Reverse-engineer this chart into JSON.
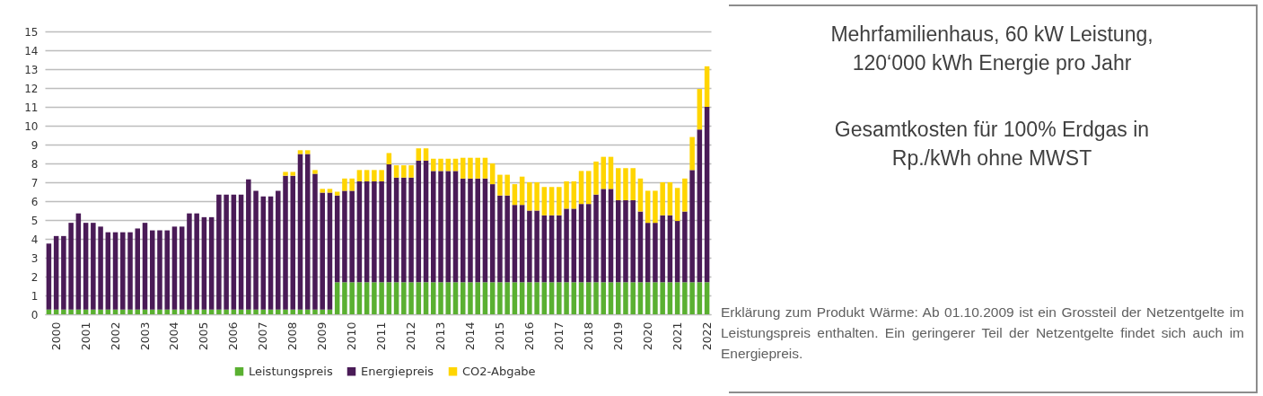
{
  "chart_data": {
    "type": "bar",
    "stacked": true,
    "title": "Mehrfamilienhaus, 60 kW Leistung, 120‘000 kWh Energie pro Jahr",
    "subtitle": "Gesamtkosten für 100% Erdgas in Rp./kWh ohne MWST",
    "annotations": [
      "Erklärung zum Produkt Wärme: Ab 01.10.2009 ist ein Grossteil der Netzentgelte im Leistungspreis enthalten. Ein geringerer Teil der Netzentgelte findet sich auch im Energiepreis."
    ],
    "categories": [
      null,
      "2000",
      null,
      null,
      null,
      "2001",
      null,
      null,
      null,
      "2002",
      null,
      null,
      null,
      "2003",
      null,
      null,
      null,
      "2004",
      null,
      null,
      null,
      "2005",
      null,
      null,
      null,
      "2006",
      null,
      null,
      null,
      "2007",
      null,
      null,
      null,
      "2008",
      null,
      null,
      null,
      "2009",
      null,
      null,
      null,
      "2010",
      null,
      null,
      null,
      "2011",
      null,
      null,
      null,
      "2012",
      null,
      null,
      null,
      "2013",
      null,
      null,
      null,
      "2014",
      null,
      null,
      null,
      "2015",
      null,
      null,
      null,
      "2016",
      null,
      null,
      null,
      "2017",
      null,
      null,
      null,
      "2018",
      null,
      null,
      null,
      "2019",
      null,
      null,
      null,
      "2020",
      null,
      null,
      null,
      "2021",
      null,
      null,
      null,
      "2022"
    ],
    "series": [
      {
        "name": "Leistungspreis",
        "color": "#5ab031",
        "values": [
          0.25,
          0.25,
          0.25,
          0.25,
          0.25,
          0.25,
          0.25,
          0.25,
          0.25,
          0.25,
          0.25,
          0.25,
          0.25,
          0.25,
          0.25,
          0.25,
          0.25,
          0.25,
          0.25,
          0.25,
          0.25,
          0.25,
          0.25,
          0.25,
          0.25,
          0.25,
          0.25,
          0.25,
          0.25,
          0.25,
          0.25,
          0.25,
          0.25,
          0.25,
          0.25,
          0.25,
          0.25,
          0.25,
          0.25,
          1.7,
          1.7,
          1.7,
          1.7,
          1.7,
          1.7,
          1.7,
          1.7,
          1.7,
          1.7,
          1.7,
          1.7,
          1.7,
          1.7,
          1.7,
          1.7,
          1.7,
          1.7,
          1.7,
          1.7,
          1.7,
          1.7,
          1.7,
          1.7,
          1.7,
          1.7,
          1.7,
          1.7,
          1.7,
          1.7,
          1.7,
          1.7,
          1.7,
          1.7,
          1.7,
          1.7,
          1.7,
          1.7,
          1.7,
          1.7,
          1.7,
          1.7,
          1.7,
          1.7,
          1.7,
          1.7,
          1.7,
          1.7,
          1.7,
          1.7,
          1.7
        ]
      },
      {
        "name": "Energiepreis",
        "color": "#4a1b57",
        "values": [
          3.5,
          3.9,
          3.9,
          4.6,
          5.1,
          4.6,
          4.6,
          4.4,
          4.1,
          4.1,
          4.1,
          4.1,
          4.3,
          4.6,
          4.2,
          4.2,
          4.2,
          4.4,
          4.4,
          5.1,
          5.1,
          4.9,
          4.9,
          6.1,
          6.1,
          6.1,
          6.1,
          6.9,
          6.3,
          6.0,
          6.0,
          6.3,
          7.1,
          7.1,
          8.25,
          8.25,
          7.2,
          6.2,
          6.2,
          4.6,
          4.85,
          4.85,
          5.35,
          5.35,
          5.35,
          5.35,
          6.25,
          5.55,
          5.55,
          5.55,
          6.45,
          6.45,
          5.9,
          5.9,
          5.9,
          5.9,
          5.5,
          5.5,
          5.5,
          5.5,
          5.2,
          4.6,
          4.6,
          4.1,
          4.1,
          3.8,
          3.8,
          3.55,
          3.55,
          3.55,
          3.9,
          3.9,
          4.15,
          4.15,
          4.65,
          4.95,
          4.95,
          4.35,
          4.35,
          4.35,
          3.75,
          3.15,
          3.15,
          3.55,
          3.55,
          3.25,
          3.75,
          5.95,
          8.1,
          9.3
        ]
      },
      {
        "name": "CO2-Abgabe",
        "color": "#ffd500",
        "values": [
          0,
          0,
          0,
          0,
          0,
          0,
          0,
          0,
          0,
          0,
          0,
          0,
          0,
          0,
          0,
          0,
          0,
          0,
          0,
          0,
          0,
          0,
          0,
          0,
          0,
          0,
          0,
          0,
          0,
          0,
          0,
          0,
          0.2,
          0.2,
          0.2,
          0.2,
          0.2,
          0.2,
          0.2,
          0.2,
          0.65,
          0.65,
          0.6,
          0.6,
          0.6,
          0.6,
          0.6,
          0.65,
          0.65,
          0.65,
          0.65,
          0.65,
          0.65,
          0.65,
          0.65,
          0.65,
          1.1,
          1.1,
          1.1,
          1.1,
          1.1,
          1.1,
          1.1,
          1.1,
          1.5,
          1.5,
          1.5,
          1.5,
          1.5,
          1.5,
          1.45,
          1.45,
          1.75,
          1.75,
          1.75,
          1.7,
          1.7,
          1.7,
          1.7,
          1.7,
          1.75,
          1.7,
          1.7,
          1.75,
          1.75,
          1.75,
          1.75,
          1.75,
          2.15,
          2.15
        ]
      }
    ],
    "ylim": [
      0,
      15
    ],
    "yticks": [
      0,
      1,
      2,
      3,
      4,
      5,
      6,
      7,
      8,
      9,
      10,
      11,
      12,
      13,
      14,
      15
    ],
    "grid": "y",
    "legend": "bottom"
  }
}
